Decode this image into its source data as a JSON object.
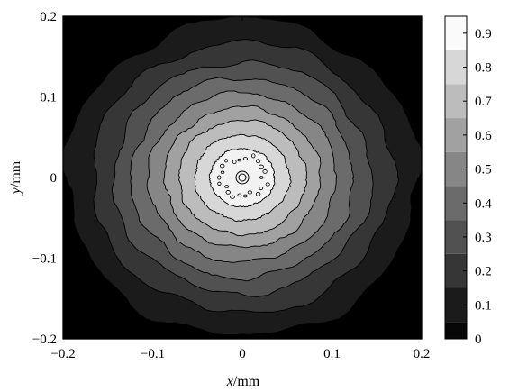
{
  "chart_data": {
    "type": "heatmap",
    "subtype": "filled-contour",
    "x_axis": {
      "label_var": "x",
      "label_unit": "/mm",
      "range": [
        -0.2,
        0.2
      ],
      "ticks": [
        "−0.2",
        "−0.1",
        "0",
        "0.1",
        "0.2"
      ],
      "tick_values": [
        -0.2,
        -0.1,
        0,
        0.1,
        0.2
      ]
    },
    "y_axis": {
      "label_var": "y",
      "label_unit": "/mm",
      "range": [
        -0.2,
        0.2
      ],
      "ticks": [
        "0.2",
        "0.1",
        "0",
        "−0.1",
        "−0.2"
      ],
      "tick_values": [
        0.2,
        0.1,
        0,
        -0.1,
        -0.2
      ]
    },
    "colorbar": {
      "range": [
        0,
        0.95
      ],
      "ticks": [
        "0.9",
        "0.8",
        "0.7",
        "0.6",
        "0.5",
        "0.4",
        "0.3",
        "0.2",
        "0.1",
        "0"
      ],
      "tick_values": [
        0.9,
        0.8,
        0.7,
        0.6,
        0.5,
        0.4,
        0.3,
        0.2,
        0.1,
        0
      ],
      "colormap": "gray"
    },
    "contours": [
      {
        "level": 0.05,
        "radius_mm": 0.197
      },
      {
        "level": 0.15,
        "radius_mm": 0.168
      },
      {
        "level": 0.25,
        "radius_mm": 0.144
      },
      {
        "level": 0.35,
        "radius_mm": 0.124
      },
      {
        "level": 0.45,
        "radius_mm": 0.105
      },
      {
        "level": 0.55,
        "radius_mm": 0.087
      },
      {
        "level": 0.65,
        "radius_mm": 0.071
      },
      {
        "level": 0.75,
        "radius_mm": 0.053
      },
      {
        "level": 0.85,
        "radius_mm": 0.036
      }
    ],
    "peak_value": 0.95,
    "grid": false,
    "legend": "colorbar-right"
  }
}
